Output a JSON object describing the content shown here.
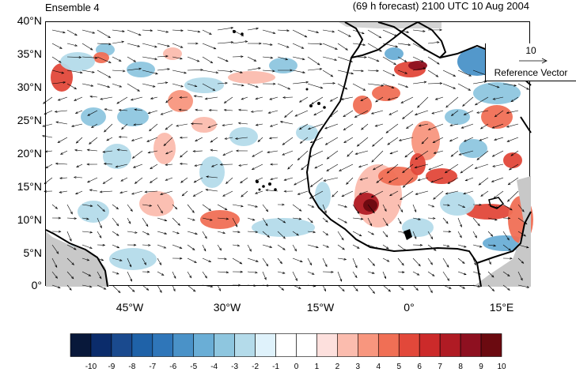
{
  "title_left": "Ensemble 4",
  "title_right": "(69 h forecast) 2100 UTC 10 Aug 2004",
  "lat_labels": [
    "40°N",
    "35°N",
    "30°N",
    "25°N",
    "20°N",
    "15°N",
    "10°N",
    "5°N",
    "0°"
  ],
  "lon_labels": [
    "45°W",
    "30°W",
    "15°W",
    "0°",
    "15°E"
  ],
  "reference_vector": {
    "magnitude": "10",
    "label": "Reference Vector"
  },
  "colorbar": {
    "labels": [
      "-10",
      "-9",
      "-8",
      "-7",
      "-6",
      "-5",
      "-4",
      "-3",
      "-2",
      "-1",
      "0",
      "1",
      "2",
      "3",
      "4",
      "5",
      "6",
      "7",
      "8",
      "9",
      "10"
    ],
    "colors": [
      "#08183a",
      "#0b2c6b",
      "#1a4a8e",
      "#1f62a8",
      "#2f76b9",
      "#4a92c8",
      "#6aaed6",
      "#8ec6df",
      "#b4dbea",
      "#dff2fb",
      "#ffffff",
      "#ffffff",
      "#fde0dd",
      "#fbbcae",
      "#f8967e",
      "#f06f55",
      "#e2483a",
      "#cc2a2a",
      "#b01b24",
      "#8e1020",
      "#6b0a10"
    ]
  }
}
